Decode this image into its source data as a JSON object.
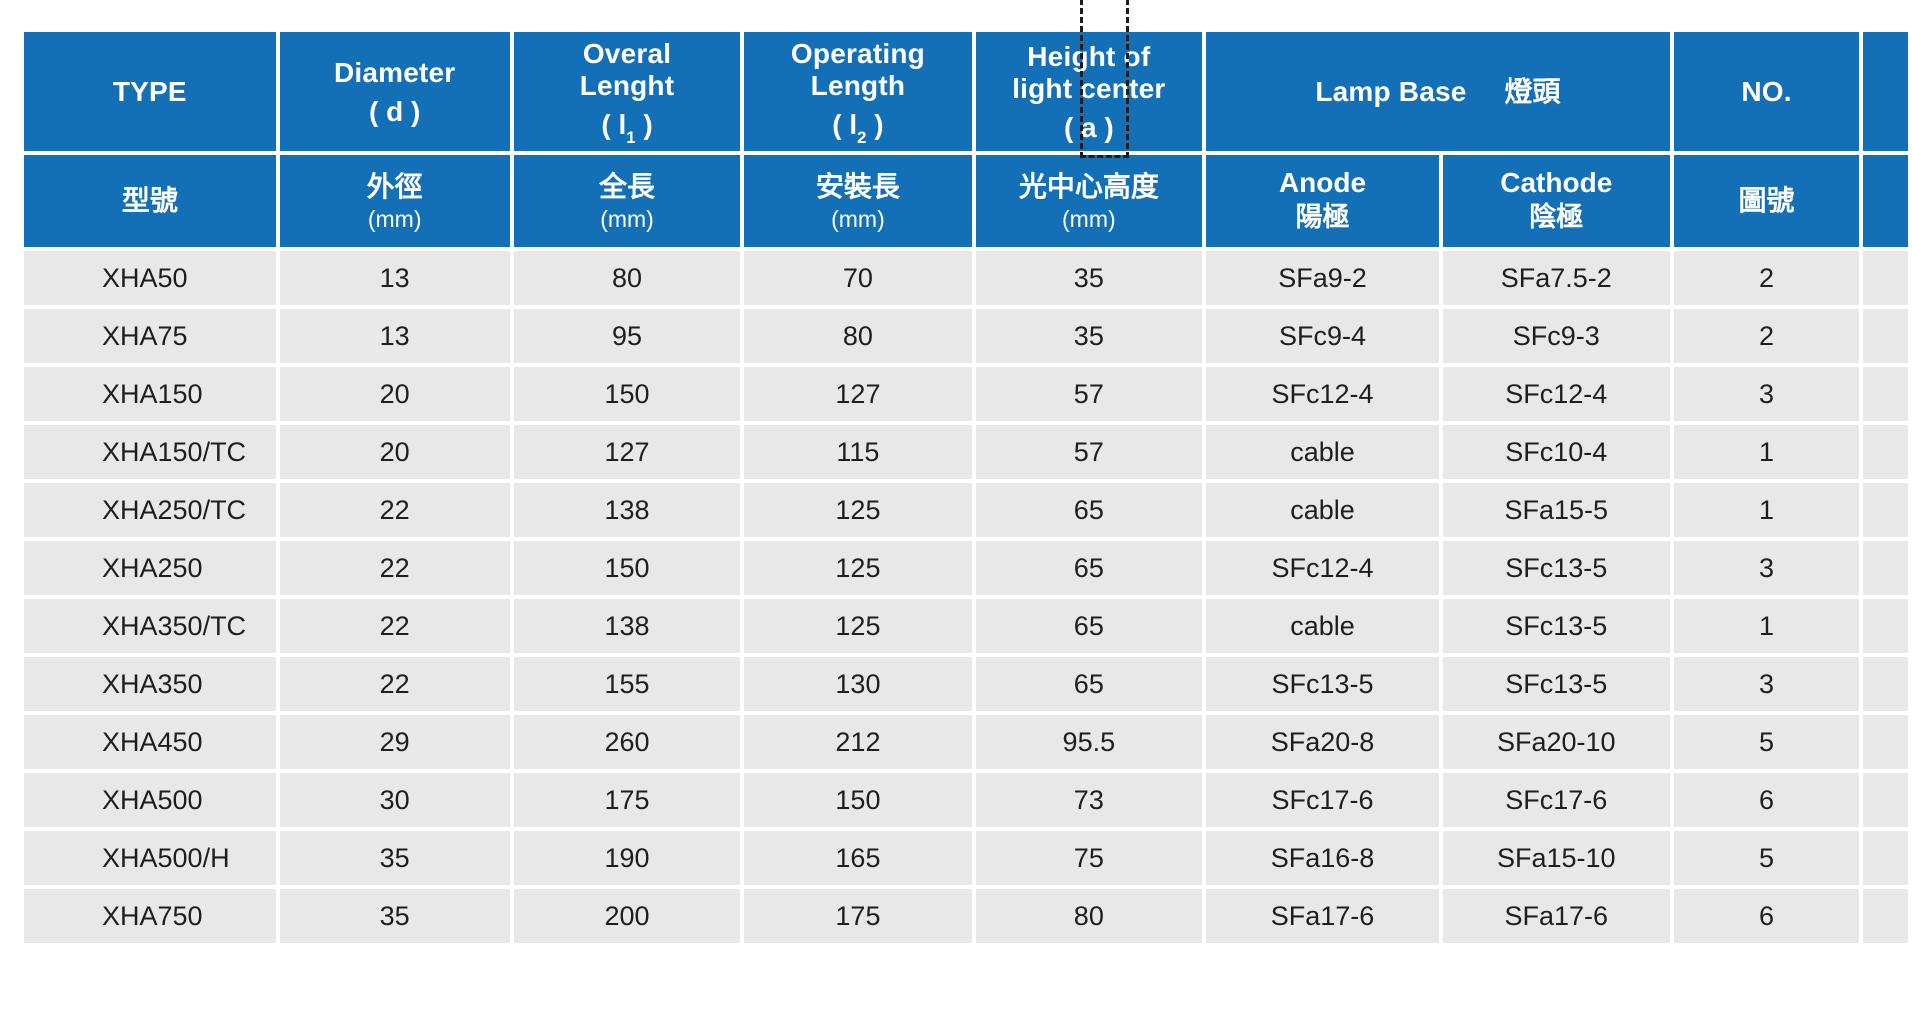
{
  "colors": {
    "header_blue": "#1470b6",
    "row_gray": "#e8e8e8",
    "header_text": "#ffffff",
    "body_text": "#1e1e1e",
    "marquee_dash": "#1c1c1c"
  },
  "table": {
    "header": {
      "row1": [
        {
          "line1": "TYPE"
        },
        {
          "line1": "Diameter",
          "sym_pre": "( d )"
        },
        {
          "line1": "Overal",
          "line2": "Lenght",
          "sym_pre": "( l",
          "sym_sub": "1",
          "sym_post": " )"
        },
        {
          "line1": "Operating",
          "line2": "Length",
          "sym_pre": "( l",
          "sym_sub": "2",
          "sym_post": " )"
        },
        {
          "line1": "Height of",
          "line2": "light center",
          "sym_pre": "( a )"
        },
        {
          "en": "Lamp Base",
          "zh": "燈頭"
        },
        {
          "line1": "NO."
        }
      ],
      "row2": [
        {
          "zh": "型號"
        },
        {
          "zh": "外徑",
          "unit": "(mm)"
        },
        {
          "zh": "全長",
          "unit": "(mm)"
        },
        {
          "zh": "安裝長",
          "unit": "(mm)"
        },
        {
          "zh": "光中心高度",
          "unit": "(mm)"
        },
        {
          "en": "Anode",
          "zh": "陽極"
        },
        {
          "en": "Cathode",
          "zh": "陰極"
        },
        {
          "zh": "圖號"
        }
      ]
    },
    "rows": [
      {
        "type": "XHA50",
        "d": "13",
        "l1": "80",
        "l2": "70",
        "a": "35",
        "anode": "SFa9-2",
        "cathode": "SFa7.5-2",
        "no": "2"
      },
      {
        "type": "XHA75",
        "d": "13",
        "l1": "95",
        "l2": "80",
        "a": "35",
        "anode": "SFc9-4",
        "cathode": "SFc9-3",
        "no": "2"
      },
      {
        "type": "XHA150",
        "d": "20",
        "l1": "150",
        "l2": "127",
        "a": "57",
        "anode": "SFc12-4",
        "cathode": "SFc12-4",
        "no": "3"
      },
      {
        "type": "XHA150/TC",
        "d": "20",
        "l1": "127",
        "l2": "115",
        "a": "57",
        "anode": "cable",
        "cathode": "SFc10-4",
        "no": "1"
      },
      {
        "type": "XHA250/TC",
        "d": "22",
        "l1": "138",
        "l2": "125",
        "a": "65",
        "anode": "cable",
        "cathode": "SFa15-5",
        "no": "1"
      },
      {
        "type": "XHA250",
        "d": "22",
        "l1": "150",
        "l2": "125",
        "a": "65",
        "anode": "SFc12-4",
        "cathode": "SFc13-5",
        "no": "3"
      },
      {
        "type": "XHA350/TC",
        "d": "22",
        "l1": "138",
        "l2": "125",
        "a": "65",
        "anode": "cable",
        "cathode": "SFc13-5",
        "no": "1"
      },
      {
        "type": "XHA350",
        "d": "22",
        "l1": "155",
        "l2": "130",
        "a": "65",
        "anode": "SFc13-5",
        "cathode": "SFc13-5",
        "no": "3"
      },
      {
        "type": "XHA450",
        "d": "29",
        "l1": "260",
        "l2": "212",
        "a": "95.5",
        "anode": "SFa20-8",
        "cathode": "SFa20-10",
        "no": "5"
      },
      {
        "type": "XHA500",
        "d": "30",
        "l1": "175",
        "l2": "150",
        "a": "73",
        "anode": "SFc17-6",
        "cathode": "SFc17-6",
        "no": "6"
      },
      {
        "type": "XHA500/H",
        "d": "35",
        "l1": "190",
        "l2": "165",
        "a": "75",
        "anode": "SFa16-8",
        "cathode": "SFa15-10",
        "no": "5"
      },
      {
        "type": "XHA750",
        "d": "35",
        "l1": "200",
        "l2": "175",
        "a": "80",
        "anode": "SFa17-6",
        "cathode": "SFa17-6",
        "no": "6"
      }
    ]
  }
}
